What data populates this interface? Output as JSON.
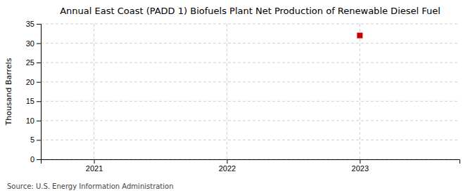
{
  "chart_data": {
    "type": "scatter",
    "title": "Annual East Coast (PADD 1) Biofuels Plant Net Production of Renewable Diesel Fuel",
    "y_label": "Thousand Barrels",
    "source": "Source: U.S. Energy Information Administration",
    "x": [
      2023
    ],
    "values": [
      32
    ],
    "color": "#cc0000",
    "marker": "square",
    "xlim": [
      2020.6,
      2023.75
    ],
    "xticks": [
      2021,
      2022,
      2023
    ],
    "ylim": [
      0,
      35
    ],
    "yticks": [
      0,
      5,
      10,
      15,
      20,
      25,
      30,
      35
    ],
    "grid": true
  }
}
